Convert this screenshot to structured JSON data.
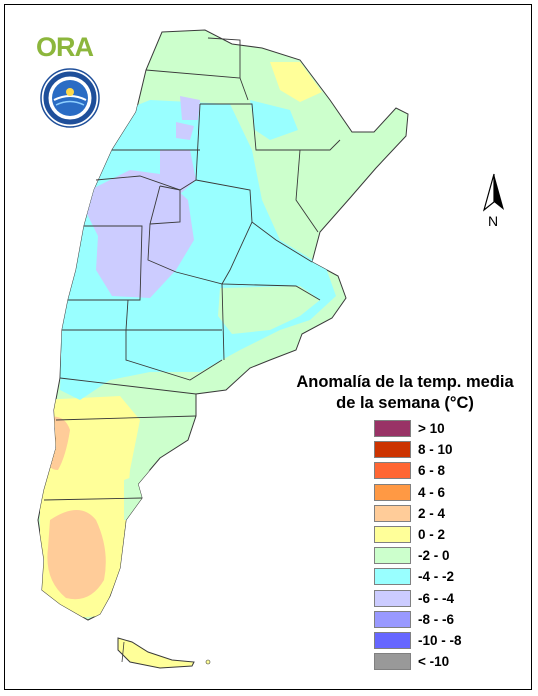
{
  "logo": {
    "text": "ORA"
  },
  "north_arrow": {
    "label": "N"
  },
  "legend": {
    "title_line1": "Anomalía de la temp. media",
    "title_line2": "de la semana (°C)",
    "items": [
      {
        "label": "> 10",
        "color": "#993366"
      },
      {
        "label": "8 - 10",
        "color": "#cc3300"
      },
      {
        "label": "6 - 8",
        "color": "#ff6633"
      },
      {
        "label": "4 - 6",
        "color": "#ff9944"
      },
      {
        "label": "2 - 4",
        "color": "#ffcc99"
      },
      {
        "label": "0 - 2",
        "color": "#ffff99"
      },
      {
        "label": "-2 - 0",
        "color": "#ccffcc"
      },
      {
        "label": "-4 - -2",
        "color": "#99ffff"
      },
      {
        "label": "-6 - -4",
        "color": "#ccccff"
      },
      {
        "label": "-8 - -6",
        "color": "#9999ff"
      },
      {
        "label": "-10 - -8",
        "color": "#6666ff"
      },
      {
        "label": "< -10",
        "color": "#999999"
      }
    ]
  },
  "map": {
    "subject": "Argentina weekly mean temperature anomaly",
    "colors": {
      "green": "#ccffcc",
      "cyan": "#99ffff",
      "lavender": "#ccccff",
      "yellow": "#ffff99",
      "peach": "#ffcc99"
    }
  }
}
